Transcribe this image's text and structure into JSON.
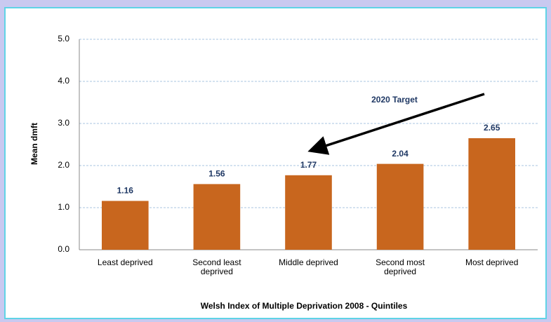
{
  "chart_data": {
    "type": "bar",
    "categories": [
      "Least deprived",
      "Second least deprived",
      "Middle deprived",
      "Second most deprived",
      "Most deprived"
    ],
    "values": [
      1.16,
      1.56,
      1.77,
      2.04,
      2.65
    ],
    "color": "#c8661e",
    "ylim": [
      0,
      5
    ],
    "yticks": [
      {
        "value": 0,
        "label": "0.0"
      },
      {
        "value": 1,
        "label": "1.0"
      },
      {
        "value": 2,
        "label": "2.0"
      },
      {
        "value": 3,
        "label": "3.0"
      },
      {
        "value": 4,
        "label": "4.0"
      },
      {
        "value": 5,
        "label": "5.0"
      }
    ],
    "grid": true,
    "y_label": "Mean dmft",
    "x_label": "Welsh Index of Multiple Deprivation 2008 - Quintiles",
    "annotation": "2020 Target"
  }
}
